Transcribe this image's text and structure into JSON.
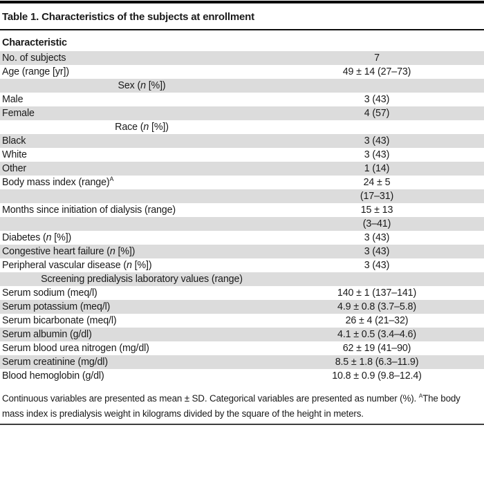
{
  "table": {
    "title": "Table 1. Characteristics of the subjects at enrollment",
    "column_header": "Characteristic",
    "colors": {
      "row_shade": "#dcdcdc",
      "text": "#1a1a1a",
      "rule": "#000000"
    },
    "rows": [
      {
        "type": "data",
        "label": [
          {
            "text": "No. of subjects"
          }
        ],
        "value": "7"
      },
      {
        "type": "data",
        "label": [
          {
            "text": "Age (range [yr])"
          }
        ],
        "value": "49 ± 14 (27–73)"
      },
      {
        "type": "subheader",
        "label": [
          {
            "text": "Sex ("
          },
          {
            "text": "n",
            "style": "italic"
          },
          {
            "text": " [%])"
          }
        ],
        "value": ""
      },
      {
        "type": "data",
        "label": [
          {
            "text": "Male"
          }
        ],
        "value": "3 (43)"
      },
      {
        "type": "data",
        "label": [
          {
            "text": "Female"
          }
        ],
        "value": "4 (57)"
      },
      {
        "type": "subheader",
        "label": [
          {
            "text": "Race ("
          },
          {
            "text": "n",
            "style": "italic"
          },
          {
            "text": " [%])"
          }
        ],
        "value": ""
      },
      {
        "type": "data",
        "label": [
          {
            "text": "Black"
          }
        ],
        "value": "3 (43)"
      },
      {
        "type": "data",
        "label": [
          {
            "text": "White"
          }
        ],
        "value": "3 (43)"
      },
      {
        "type": "data",
        "label": [
          {
            "text": "Other"
          }
        ],
        "value": "1 (14)"
      },
      {
        "type": "data",
        "label": [
          {
            "text": "Body mass index (range)"
          },
          {
            "text": "A",
            "style": "sup"
          }
        ],
        "value": "24 ± 5"
      },
      {
        "type": "data",
        "label": [],
        "value": "(17–31)"
      },
      {
        "type": "data",
        "label": [
          {
            "text": "Months since initiation of dialysis (range)"
          }
        ],
        "value": "15 ± 13"
      },
      {
        "type": "data",
        "label": [],
        "value": "(3–41)"
      },
      {
        "type": "data",
        "label": [
          {
            "text": "Diabetes ("
          },
          {
            "text": "n",
            "style": "italic"
          },
          {
            "text": " [%])"
          }
        ],
        "value": "3 (43)"
      },
      {
        "type": "data",
        "label": [
          {
            "text": "Congestive heart failure ("
          },
          {
            "text": "n",
            "style": "italic"
          },
          {
            "text": " [%])"
          }
        ],
        "value": "3 (43)"
      },
      {
        "type": "data",
        "label": [
          {
            "text": "Peripheral vascular disease ("
          },
          {
            "text": "n",
            "style": "italic"
          },
          {
            "text": " [%])"
          }
        ],
        "value": "3 (43)"
      },
      {
        "type": "subheader",
        "label": [
          {
            "text": "Screening predialysis laboratory values (range)"
          }
        ],
        "value": ""
      },
      {
        "type": "data",
        "label": [
          {
            "text": "Serum sodium (meq/l)"
          }
        ],
        "value": "140 ± 1 (137–141)"
      },
      {
        "type": "data",
        "label": [
          {
            "text": "Serum potassium (meq/l)"
          }
        ],
        "value": "4.9 ± 0.8 (3.7–5.8)"
      },
      {
        "type": "data",
        "label": [
          {
            "text": "Serum bicarbonate (meq/l)"
          }
        ],
        "value": "26 ± 4 (21–32)"
      },
      {
        "type": "data",
        "label": [
          {
            "text": "Serum albumin (g/dl)"
          }
        ],
        "value": "4.1 ± 0.5 (3.4–4.6)"
      },
      {
        "type": "data",
        "label": [
          {
            "text": "Serum blood urea nitrogen (mg/dl)"
          }
        ],
        "value": "62 ± 19 (41–90)"
      },
      {
        "type": "data",
        "label": [
          {
            "text": "Serum creatinine (mg/dl)"
          }
        ],
        "value": "8.5 ± 1.8 (6.3–11.9)"
      },
      {
        "type": "data",
        "label": [
          {
            "text": "Blood hemoglobin (g/dl)"
          }
        ],
        "value": "10.8 ± 0.9 (9.8–12.4)"
      }
    ],
    "footnote": [
      {
        "text": "Continuous variables are presented as mean ± SD. Categorical variables are presented as number (%). "
      },
      {
        "text": "A",
        "style": "sup"
      },
      {
        "text": "The body mass index is predialysis weight in kilograms divided by the square of the height in meters."
      }
    ]
  }
}
